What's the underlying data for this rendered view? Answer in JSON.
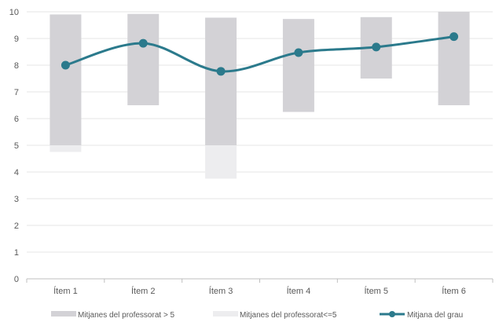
{
  "chart_data": {
    "type": "bar",
    "categories": [
      "Ítem 1",
      "Ítem 2",
      "Ítem 3",
      "Ítem 4",
      "Ítem 5",
      "Ítem 6"
    ],
    "ylim": [
      0,
      10
    ],
    "yticks": [
      0,
      1,
      2,
      3,
      4,
      5,
      6,
      7,
      8,
      9,
      10
    ],
    "grid": true,
    "legend_position": "bottom",
    "series": [
      {
        "name": "Mitjanes del professorat > 5",
        "kind": "floating-bar",
        "color": "#d3d2d6",
        "low": [
          5.0,
          6.5,
          5.0,
          6.25,
          7.5,
          6.5
        ],
        "high": [
          9.9,
          9.92,
          9.78,
          9.73,
          9.8,
          10.0
        ]
      },
      {
        "name": "Mitjanes del professorat<=5",
        "kind": "floating-bar",
        "color": "#ededef",
        "low": [
          4.75,
          null,
          3.75,
          null,
          null,
          null
        ],
        "high": [
          5.0,
          null,
          5.0,
          null,
          null,
          null
        ]
      },
      {
        "name": "Mitjana del grau",
        "kind": "line",
        "color": "#2b7a8c",
        "values": [
          8.0,
          8.82,
          7.77,
          8.47,
          8.68,
          9.07
        ]
      }
    ]
  }
}
